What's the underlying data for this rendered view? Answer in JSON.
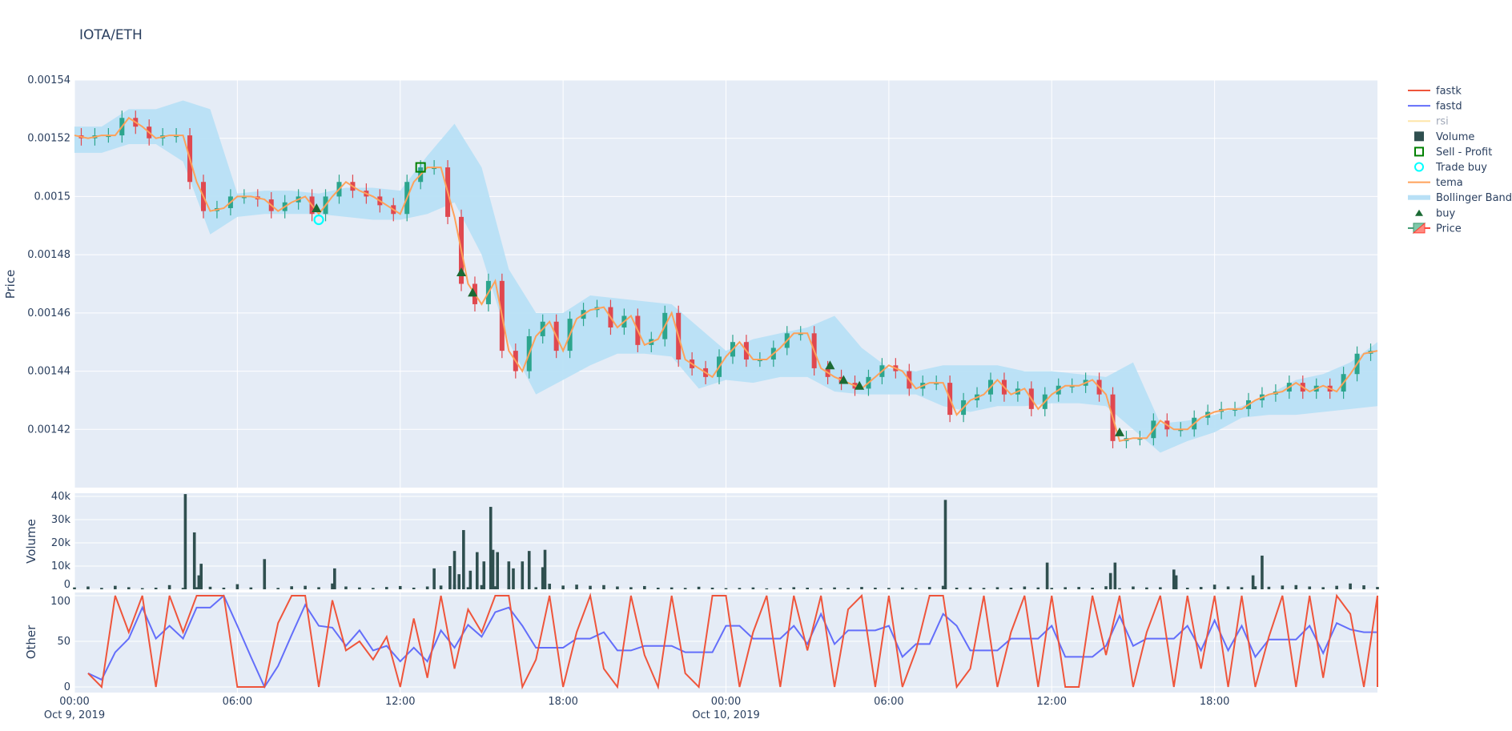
{
  "title": "IOTA/ETH",
  "chart_data": [
    {
      "type": "candlestick+line",
      "panel": "price",
      "ylabel": "Price",
      "ylim": [
        0.0014,
        0.00154
      ],
      "yticks": [
        "0.00154",
        "0.00152",
        "0.0015",
        "0.00148",
        "0.00146",
        "0.00144",
        "0.00142"
      ],
      "ytick_values": [
        0.00154,
        0.00152,
        0.0015,
        0.00148,
        0.00146,
        0.00144,
        0.00142
      ],
      "grid": true,
      "start": "2019-10-09T00:00",
      "step_minutes": 30,
      "tema": [
        0.001521,
        0.00152,
        0.001521,
        0.001521,
        0.001527,
        0.001524,
        0.00152,
        0.001521,
        0.001521,
        0.001505,
        0.001495,
        0.001496,
        0.0015,
        0.0015,
        0.001499,
        0.001495,
        0.001498,
        0.0015,
        0.001494,
        0.0015,
        0.001505,
        0.001502,
        0.0015,
        0.001497,
        0.001494,
        0.001505,
        0.00151,
        0.00151,
        0.001493,
        0.00147,
        0.001463,
        0.001471,
        0.001447,
        0.00144,
        0.001452,
        0.001457,
        0.001447,
        0.001458,
        0.001461,
        0.001462,
        0.001455,
        0.001459,
        0.001449,
        0.001451,
        0.00146,
        0.001444,
        0.001441,
        0.001438,
        0.001445,
        0.00145,
        0.001444,
        0.001444,
        0.001448,
        0.001453,
        0.001453,
        0.001441,
        0.001438,
        0.001436,
        0.001434,
        0.001438,
        0.001442,
        0.00144,
        0.001434,
        0.001436,
        0.001436,
        0.001425,
        0.00143,
        0.001432,
        0.001437,
        0.001432,
        0.001434,
        0.001427,
        0.001432,
        0.001435,
        0.001435,
        0.001437,
        0.001432,
        0.001416,
        0.001417,
        0.001417,
        0.001423,
        0.00142,
        0.00142,
        0.001424,
        0.001426,
        0.001427,
        0.001427,
        0.00143,
        0.001432,
        0.001433,
        0.001436,
        0.001433,
        0.001435,
        0.001433,
        0.001439,
        0.001446,
        0.001447
      ],
      "bollinger_step_minutes": 60,
      "bollinger_upper": [
        0.001524,
        0.001524,
        0.00153,
        0.00153,
        0.001533,
        0.00153,
        0.001501,
        0.001502,
        0.001502,
        0.001501,
        0.001503,
        0.001503,
        0.001502,
        0.001514,
        0.001525,
        0.00151,
        0.001475,
        0.00146,
        0.00146,
        0.001466,
        0.001465,
        0.001464,
        0.001463,
        0.001455,
        0.001447,
        0.001451,
        0.001453,
        0.001455,
        0.001459,
        0.001448,
        0.001441,
        0.00144,
        0.001442,
        0.001442,
        0.001442,
        0.00144,
        0.00144,
        0.001439,
        0.001438,
        0.001443,
        0.001422,
        0.001423,
        0.001425,
        0.001428,
        0.001432,
        0.001437,
        0.001439,
        0.001443,
        0.00145
      ],
      "bollinger_lower": [
        0.001515,
        0.001515,
        0.001518,
        0.001518,
        0.001512,
        0.001487,
        0.001493,
        0.001494,
        0.001494,
        0.001494,
        0.001493,
        0.001492,
        0.001492,
        0.001494,
        0.001498,
        0.00148,
        0.00145,
        0.001432,
        0.001437,
        0.001442,
        0.001446,
        0.001446,
        0.001445,
        0.001434,
        0.001437,
        0.001436,
        0.001438,
        0.001438,
        0.001433,
        0.001432,
        0.001432,
        0.001432,
        0.001428,
        0.001426,
        0.001428,
        0.001428,
        0.001429,
        0.001429,
        0.001428,
        0.00142,
        0.001412,
        0.001416,
        0.001419,
        0.001424,
        0.001425,
        0.001425,
        0.001426,
        0.001427,
        0.001428
      ],
      "buy": [
        {
          "t": "2019-10-09T08:55",
          "price": 0.001496
        },
        {
          "t": "2019-10-09T14:15",
          "price": 0.001474
        },
        {
          "t": "2019-10-09T14:40",
          "price": 0.001467
        },
        {
          "t": "2019-10-10T03:50",
          "price": 0.001442
        },
        {
          "t": "2019-10-10T04:20",
          "price": 0.001437
        },
        {
          "t": "2019-10-10T04:55",
          "price": 0.001435
        },
        {
          "t": "2019-10-10T14:30",
          "price": 0.001419
        }
      ],
      "trade_buy": [
        {
          "t": "2019-10-09T09:00",
          "price": 0.001492
        }
      ],
      "sell_profit": [
        {
          "t": "2019-10-09T12:45",
          "price": 0.00151
        }
      ]
    },
    {
      "type": "bar",
      "panel": "volume",
      "ylabel": "Volume",
      "ylim": [
        0,
        40000
      ],
      "yticks": [
        "0",
        "10k",
        "20k",
        "30k",
        "40k"
      ],
      "ytick_values": [
        0,
        10000,
        20000,
        30000,
        40000
      ],
      "start": "2019-10-09T00:00",
      "step_minutes": 30,
      "values": [
        800,
        1200,
        600,
        1500,
        900,
        500,
        700,
        1800,
        600,
        900,
        1100,
        700,
        2200,
        800,
        1000,
        600,
        1300,
        1500,
        900,
        2500,
        1200,
        800,
        600,
        1000,
        1400,
        700,
        1200,
        1600,
        2000,
        900,
        1800,
        1300,
        1100,
        700,
        900,
        2400,
        1600,
        2000,
        1500,
        1800,
        1200,
        900,
        1400,
        700,
        800,
        600,
        1100,
        700,
        500,
        600,
        800,
        400,
        600,
        900,
        700,
        500,
        800,
        600,
        1000,
        700,
        600,
        800,
        500,
        1000,
        1500,
        700,
        800,
        600,
        900,
        700,
        1200,
        800,
        600,
        900,
        1000,
        700,
        1300,
        500,
        1200,
        800,
        900,
        1400,
        700,
        1000,
        2000,
        1200,
        900,
        1300,
        1100,
        1600,
        1800,
        1200,
        900,
        1500,
        2500,
        1700,
        1000
      ],
      "spikes": [
        {
          "t": "2019-10-09T04:05",
          "v": 41000
        },
        {
          "t": "2019-10-09T04:25",
          "v": 24500
        },
        {
          "t": "2019-10-09T04:35",
          "v": 6000
        },
        {
          "t": "2019-10-09T04:40",
          "v": 11000
        },
        {
          "t": "2019-10-09T07:00",
          "v": 13000
        },
        {
          "t": "2019-10-09T09:35",
          "v": 9000
        },
        {
          "t": "2019-10-09T13:15",
          "v": 9000
        },
        {
          "t": "2019-10-09T13:50",
          "v": 10000
        },
        {
          "t": "2019-10-09T14:00",
          "v": 16500
        },
        {
          "t": "2019-10-09T14:10",
          "v": 6500
        },
        {
          "t": "2019-10-09T14:20",
          "v": 25500
        },
        {
          "t": "2019-10-09T14:35",
          "v": 8000
        },
        {
          "t": "2019-10-09T14:50",
          "v": 16000
        },
        {
          "t": "2019-10-09T15:05",
          "v": 12000
        },
        {
          "t": "2019-10-09T15:20",
          "v": 35500
        },
        {
          "t": "2019-10-09T15:25",
          "v": 17000
        },
        {
          "t": "2019-10-09T15:35",
          "v": 16000
        },
        {
          "t": "2019-10-09T16:00",
          "v": 12000
        },
        {
          "t": "2019-10-09T16:10",
          "v": 9000
        },
        {
          "t": "2019-10-09T16:30",
          "v": 12000
        },
        {
          "t": "2019-10-09T16:45",
          "v": 16500
        },
        {
          "t": "2019-10-09T17:15",
          "v": 9500
        },
        {
          "t": "2019-10-09T17:20",
          "v": 17000
        },
        {
          "t": "2019-10-10T08:05",
          "v": 38500
        },
        {
          "t": "2019-10-10T11:50",
          "v": 11500
        },
        {
          "t": "2019-10-10T14:10",
          "v": 7000
        },
        {
          "t": "2019-10-10T14:20",
          "v": 11500
        },
        {
          "t": "2019-10-10T16:30",
          "v": 8500
        },
        {
          "t": "2019-10-10T16:35",
          "v": 6000
        },
        {
          "t": "2019-10-10T19:25",
          "v": 6000
        },
        {
          "t": "2019-10-10T19:45",
          "v": 14500
        }
      ]
    },
    {
      "type": "line",
      "panel": "other",
      "ylabel": "Other",
      "ylim": [
        0,
        100
      ],
      "yticks": [
        "0",
        "50",
        "100"
      ],
      "ytick_values": [
        0,
        50,
        100
      ],
      "start": "2019-10-09T00:30",
      "step_minutes": 30,
      "series": [
        {
          "name": "fastk",
          "color": "#ef553b",
          "values": [
            15,
            0,
            100,
            60,
            100,
            0,
            100,
            60,
            100,
            100,
            100,
            0,
            0,
            0,
            70,
            100,
            100,
            0,
            95,
            40,
            50,
            30,
            55,
            0,
            75,
            10,
            100,
            20,
            85,
            60,
            100,
            100,
            0,
            30,
            100,
            0,
            60,
            100,
            20,
            0,
            100,
            35,
            0,
            100,
            15,
            0,
            100,
            100,
            0,
            60,
            100,
            0,
            100,
            40,
            100,
            0,
            85,
            100,
            0,
            100,
            0,
            40,
            100,
            100,
            0,
            20,
            100,
            0,
            60,
            100,
            0,
            100,
            0,
            0,
            100,
            35,
            100,
            0,
            60,
            100,
            0,
            100,
            20,
            100,
            0,
            100,
            0,
            55,
            100,
            0,
            100,
            10,
            100,
            80,
            0,
            100,
            0
          ]
        },
        {
          "name": "fastd",
          "color": "#636efa",
          "values": [
            15,
            8,
            38,
            53,
            87,
            53,
            67,
            53,
            87,
            87,
            100,
            67,
            33,
            0,
            23,
            57,
            90,
            67,
            65,
            45,
            62,
            40,
            45,
            28,
            43,
            28,
            62,
            43,
            68,
            55,
            82,
            87,
            67,
            43,
            43,
            43,
            53,
            53,
            60,
            40,
            40,
            45,
            45,
            45,
            38,
            38,
            38,
            67,
            67,
            53,
            53,
            53,
            67,
            47,
            80,
            47,
            62,
            62,
            62,
            67,
            33,
            47,
            47,
            80,
            67,
            40,
            40,
            40,
            53,
            53,
            53,
            67,
            33,
            33,
            33,
            45,
            78,
            45,
            53,
            53,
            53,
            67,
            40,
            73,
            40,
            67,
            33,
            52,
            52,
            52,
            67,
            37,
            70,
            63,
            60,
            60,
            33
          ]
        }
      ]
    }
  ],
  "xaxis": {
    "ticks": [
      "00:00",
      "06:00",
      "12:00",
      "18:00",
      "00:00",
      "06:00",
      "12:00",
      "18:00"
    ],
    "date_labels": [
      "Oct 9, 2019",
      "Oct 10, 2019"
    ],
    "range": [
      "2019-10-09T00:00",
      "2019-10-11T00:00"
    ]
  },
  "legend": {
    "position": "right",
    "items": [
      {
        "label": "fastk",
        "symbol": "line",
        "color": "#ef553b"
      },
      {
        "label": "fastd",
        "symbol": "line",
        "color": "#636efa"
      },
      {
        "label": "rsi",
        "symbol": "line",
        "color": "#fecb52",
        "hidden": true
      },
      {
        "label": "Volume",
        "symbol": "square",
        "color": "#2f4f4f"
      },
      {
        "label": "Sell - Profit",
        "symbol": "square-open",
        "color": "#008000"
      },
      {
        "label": "Trade buy",
        "symbol": "circle-open",
        "color": "#00ffff"
      },
      {
        "label": "tema",
        "symbol": "line",
        "color": "#ffa15a"
      },
      {
        "label": "Bollinger Band",
        "symbol": "band",
        "color": "#b8e0f6"
      },
      {
        "label": "buy",
        "symbol": "triangle-up",
        "color": "#1a6a34"
      },
      {
        "label": "Price",
        "symbol": "candle",
        "color": "#2ca58d"
      }
    ]
  },
  "colors": {
    "plot_bg": "#e5ecf6",
    "increasing": "#2ca58d",
    "decreasing": "#e0484f",
    "bollinger": "#b8e0f6",
    "tema": "#ffa15a",
    "volume": "#2f4f4f"
  }
}
